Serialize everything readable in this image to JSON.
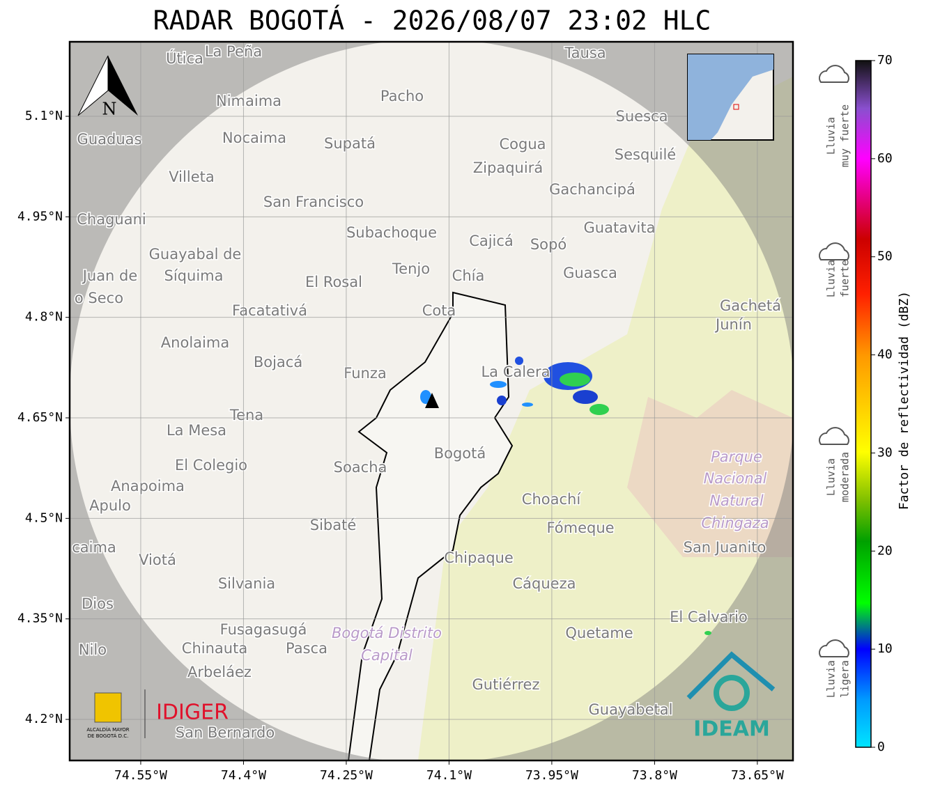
{
  "title": "RADAR BOGOTÁ - 2026/08/07 23:02 HLC",
  "map": {
    "xlim": [
      -74.6537,
      -73.598
    ],
    "ylim": [
      4.1387,
      5.2112
    ],
    "lon_ticks": [
      {
        "value": -74.55,
        "label": "74.55°W"
      },
      {
        "value": -74.4,
        "label": "74.4°W"
      },
      {
        "value": -74.25,
        "label": "74.25°W"
      },
      {
        "value": -74.1,
        "label": "74.1°W"
      },
      {
        "value": -73.95,
        "label": "73.95°W"
      },
      {
        "value": -73.8,
        "label": "73.8°W"
      },
      {
        "value": -73.65,
        "label": "73.65°W"
      }
    ],
    "lat_ticks": [
      {
        "value": 4.2,
        "label": "4.2°N"
      },
      {
        "value": 4.35,
        "label": "4.35°N"
      },
      {
        "value": 4.5,
        "label": "4.5°N"
      },
      {
        "value": 4.65,
        "label": "4.65°N"
      },
      {
        "value": 4.8,
        "label": "4.8°N"
      },
      {
        "value": 4.95,
        "label": "4.95°N"
      },
      {
        "value": 5.1,
        "label": "5.1°N"
      }
    ],
    "north": "N",
    "places": [
      "Útica",
      "La Peña",
      "Tausa",
      "Pacho",
      "Nimaima",
      "Guaduas",
      "Nocaima",
      "Supatá",
      "Cogua",
      "Suesca",
      "Sesquilé",
      "Zipaquirá",
      "Villeta",
      "Gachancipá",
      "San Francisco",
      "Chaguani",
      "Guatavita",
      "Subachoque",
      "Cajicá",
      "Sopó",
      "Guayabal de",
      "Síquima",
      "Juan de",
      "Tenjo",
      "Chía",
      "Guasca",
      "El Rosal",
      "o Seco",
      "Cota",
      "Facatativá",
      "Gachetá",
      "Junín",
      "Anolaima",
      "Bojacá",
      "Funza",
      "La Calera",
      "Tena",
      "La Mesa",
      "Bogotá",
      "Parque",
      "Soacha",
      "El Colegio",
      "Nacional",
      "Anapoima",
      "Apulo",
      "Natural",
      "Choachí",
      "Chingaza",
      "Sibaté",
      "Fómeque",
      "San Juanito",
      "caima",
      "Viotá",
      "Chipaque",
      "Cáqueza",
      "Silvania",
      "Dios",
      "El Calvario",
      "Fusagasugá",
      "Quetame",
      "Bogotá Distrito",
      "Capital",
      "Nilo",
      "Chinauta",
      "Pasca",
      "Arbeláez",
      "Gutiérrez",
      "Guayabetal",
      "San Bernardo"
    ]
  },
  "colorbar": {
    "label": "Factor de reflectividad (dBZ)",
    "lim": [
      0,
      70
    ],
    "ticks": [
      0,
      10,
      20,
      30,
      40,
      50,
      60,
      70
    ]
  },
  "rain_levels": [
    [
      "Lluvia",
      "muy fuerte"
    ],
    [
      "Lluvia",
      "fuerte"
    ],
    [
      "Lluvia",
      "moderada"
    ],
    [
      "Lluvia",
      "ligera"
    ]
  ],
  "logos": {
    "idiger": "IDIGER",
    "ideam": "IDEAM",
    "alcaldia": [
      "ALCALDÍA MAYOR",
      "DE BOGOTÁ D.C."
    ]
  }
}
